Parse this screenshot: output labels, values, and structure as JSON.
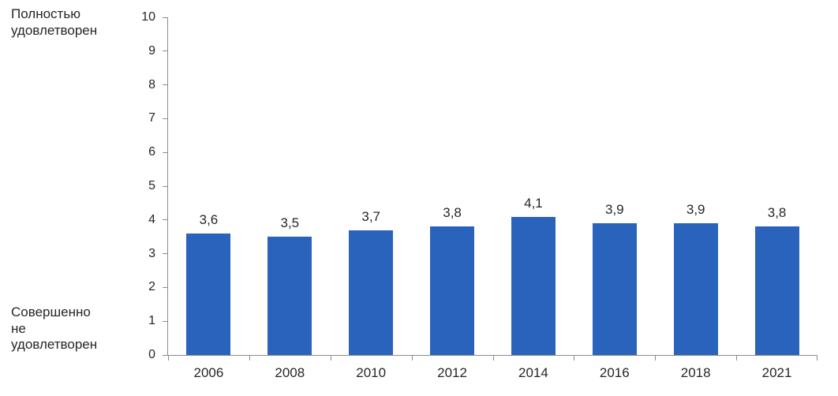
{
  "chart_data": {
    "type": "bar",
    "title": "",
    "xlabel": "",
    "ylabel": "",
    "categories": [
      "2006",
      "2008",
      "2010",
      "2012",
      "2014",
      "2016",
      "2018",
      "2021"
    ],
    "values": [
      3.6,
      3.5,
      3.7,
      3.8,
      4.1,
      3.9,
      3.9,
      3.8
    ],
    "value_labels": [
      "3,6",
      "3,5",
      "3,7",
      "3,8",
      "4,1",
      "3,9",
      "3,9",
      "3,8"
    ],
    "ylim": [
      0,
      10
    ],
    "y_ticks": [
      0,
      1,
      2,
      3,
      4,
      5,
      6,
      7,
      8,
      9,
      10
    ],
    "y_axis_top_label": "Полностью\nудовлетворен",
    "y_axis_bottom_label": "Совершенно\nне\nудовлетворен",
    "grid": false,
    "legend": false,
    "bar_color": "#2a63bc",
    "axis_color": "#8c8c8c",
    "text_color": "#262626"
  }
}
